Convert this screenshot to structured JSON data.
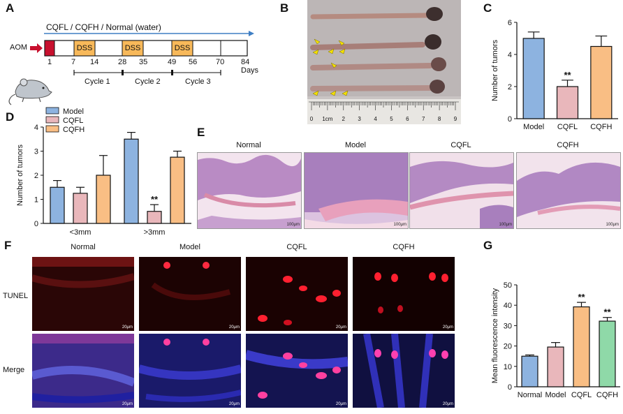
{
  "panels": {
    "A": {
      "label": "A",
      "treatment": "CQFL / CQFH / Normal (water)",
      "aom": "AOM",
      "dss": [
        "DSS",
        "DSS",
        "DSS"
      ],
      "ticks": [
        "1",
        "7",
        "14",
        "28",
        "35",
        "49",
        "56",
        "70",
        "84 Days"
      ],
      "cycles": [
        "Cycle 1",
        "Cycle 2",
        "Cycle 3"
      ]
    },
    "B": {
      "label": "B",
      "ruler_ticks": [
        "0",
        "1cm",
        "2",
        "3",
        "4",
        "5",
        "6",
        "7",
        "8",
        "9"
      ]
    },
    "C": {
      "label": "C"
    },
    "D": {
      "label": "D"
    },
    "E": {
      "label": "E",
      "titles": [
        "Normal",
        "Model",
        "CQFL",
        "CQFH"
      ],
      "scale": "100μm"
    },
    "F": {
      "label": "F",
      "titles": [
        "Normal",
        "Model",
        "CQFL",
        "CQFH"
      ],
      "rows": [
        "TUNEL",
        "Merge"
      ],
      "scale": "20μm"
    },
    "G": {
      "label": "G"
    }
  },
  "colors": {
    "model_blue": "#8db3e0",
    "cqfl_pink": "#e9b7bb",
    "cqfh_orange": "#f9be84",
    "green": "#8fd9a8",
    "arrow_blue": "#3f7fc4",
    "aom_red": "#c8102e",
    "dss_orange": "#f8b95a"
  },
  "chart_data": [
    {
      "id": "C",
      "type": "bar",
      "categories": [
        "Model",
        "CQFL",
        "CQFH"
      ],
      "values": [
        5.0,
        2.0,
        4.5
      ],
      "errors": [
        0.4,
        0.4,
        0.65
      ],
      "significance": [
        "",
        "**",
        ""
      ],
      "title": "",
      "xlabel": "",
      "ylabel": "Number of tumors",
      "ylim": [
        0,
        6
      ],
      "yticks": [
        "0",
        "2",
        "4",
        "6"
      ],
      "grid": false
    },
    {
      "id": "D",
      "type": "bar",
      "categories": [
        "<3mm",
        ">3mm"
      ],
      "series": [
        {
          "name": "Model",
          "values": [
            1.5,
            3.5
          ],
          "errors": [
            0.28,
            0.28
          ]
        },
        {
          "name": "CQFL",
          "values": [
            1.25,
            0.5
          ],
          "errors": [
            0.25,
            0.28
          ],
          "significance": [
            "",
            "**"
          ]
        },
        {
          "name": "CQFH",
          "values": [
            2.0,
            2.75
          ],
          "errors": [
            0.82,
            0.25
          ]
        }
      ],
      "title": "",
      "xlabel": "",
      "ylabel": "Number of tumors",
      "ylim": [
        0,
        4
      ],
      "yticks": [
        "0",
        "1",
        "2",
        "3",
        "4"
      ],
      "legend": "top-left",
      "grid": false
    },
    {
      "id": "G",
      "type": "bar",
      "categories": [
        "Normal",
        "Model",
        "CQFL",
        "CQFH"
      ],
      "values": [
        15,
        19.5,
        39.2,
        32.2
      ],
      "errors": [
        0.6,
        2.2,
        2.2,
        1.8
      ],
      "significance": [
        "",
        "",
        "**",
        "**"
      ],
      "title": "",
      "xlabel": "",
      "ylabel": "Mean fluorescence intensity",
      "ylim": [
        0,
        50
      ],
      "yticks": [
        "0",
        "10",
        "20",
        "30",
        "40",
        "50"
      ],
      "grid": false
    }
  ]
}
